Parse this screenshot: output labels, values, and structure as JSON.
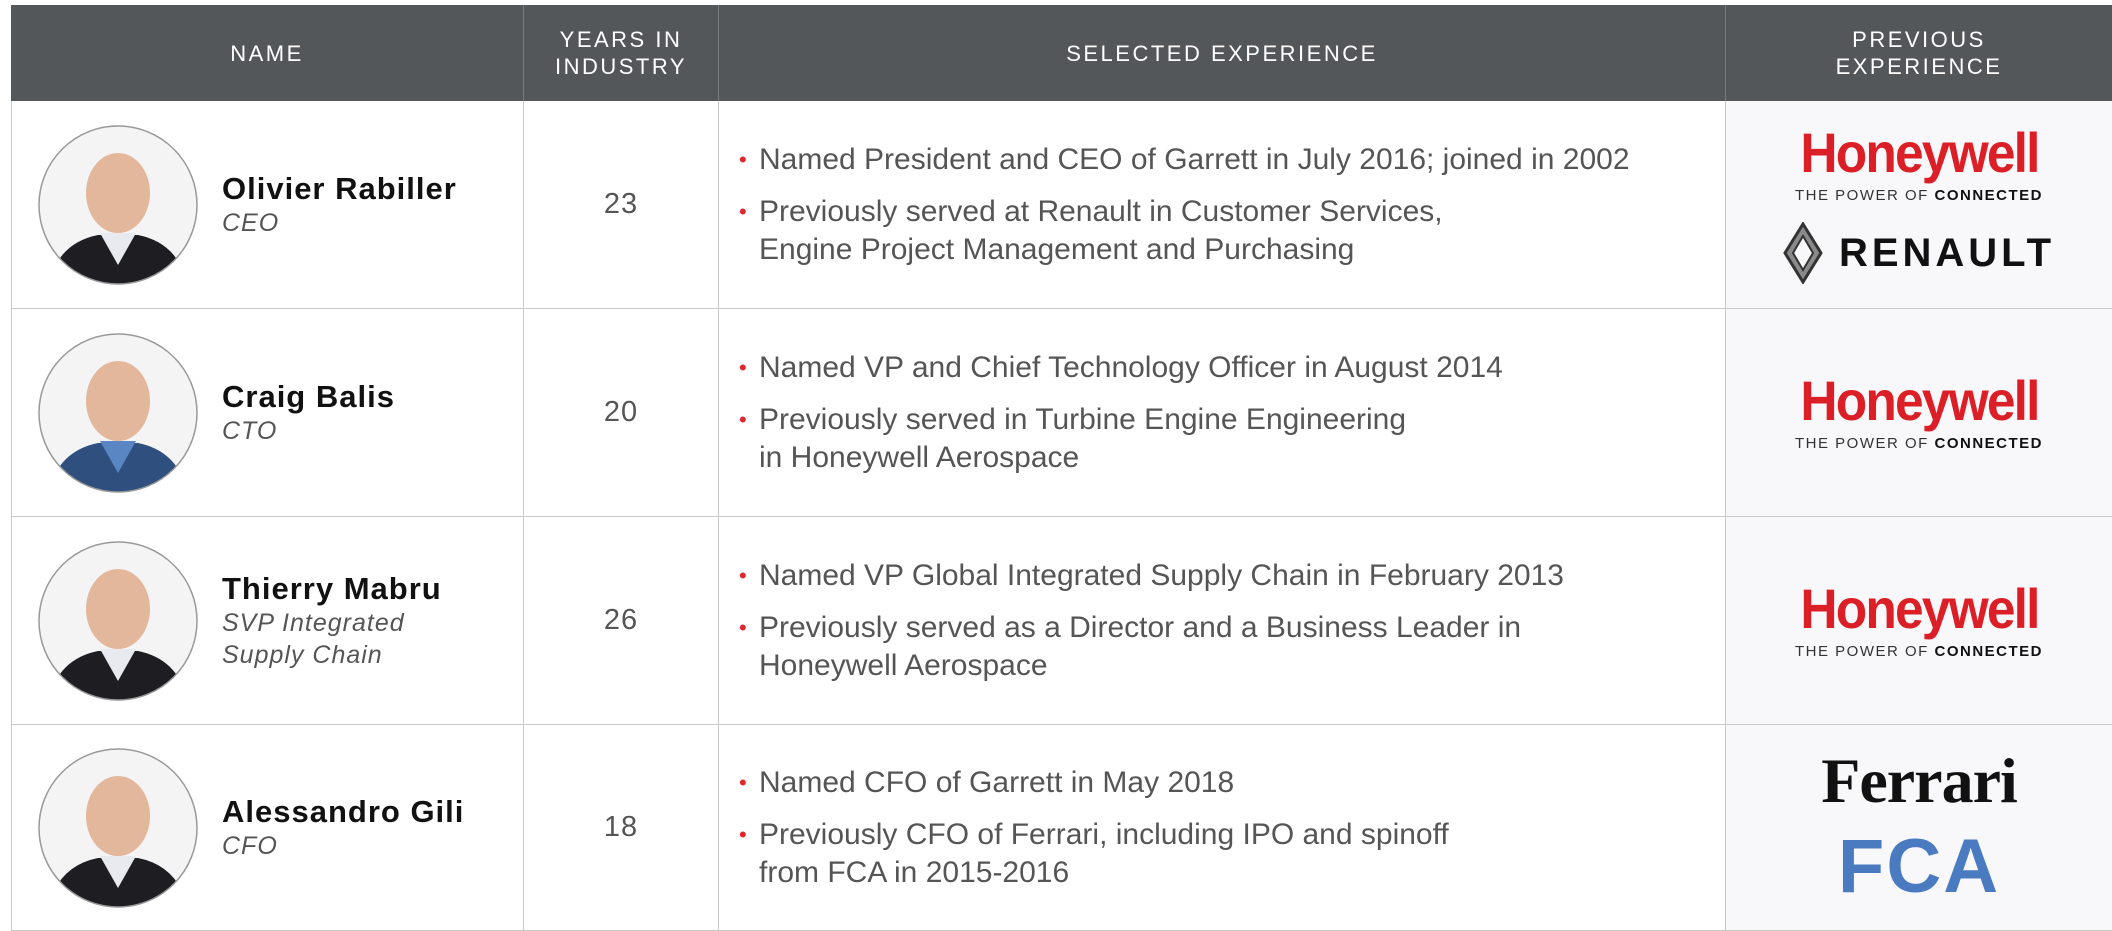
{
  "table": {
    "header": [
      [
        "NAME"
      ],
      [
        "YEARS IN",
        "INDUSTRY"
      ],
      [
        "SELECTED EXPERIENCE"
      ],
      [
        "PREVIOUS",
        "EXPERIENCE"
      ]
    ],
    "rows": [
      {
        "name": "Olivier Rabiller",
        "title": [
          "CEO"
        ],
        "years": 23,
        "experience": [
          [
            "Named President and CEO of Garrett in July 2016; joined in 2002"
          ],
          [
            "Previously served at Renault in Customer Services,",
            "Engine Project Management and Purchasing"
          ]
        ],
        "logos": [
          {
            "brand": "Honeywell",
            "tagline": [
              "THE POWER OF",
              "CONNECTED"
            ]
          },
          {
            "brand": "RENAULT"
          }
        ]
      },
      {
        "name": "Craig Balis",
        "title": [
          "CTO"
        ],
        "years": 20,
        "experience": [
          [
            "Named VP and Chief Technology Officer in August 2014"
          ],
          [
            "Previously served in Turbine Engine Engineering",
            "in Honeywell Aerospace"
          ]
        ],
        "logos": [
          {
            "brand": "Honeywell",
            "tagline": [
              "THE POWER OF",
              "CONNECTED"
            ]
          }
        ]
      },
      {
        "name": "Thierry Mabru",
        "title": [
          "SVP Integrated",
          "Supply Chain"
        ],
        "years": 26,
        "experience": [
          [
            "Named VP Global Integrated Supply Chain in February 2013"
          ],
          [
            "Previously served as a Director and a Business Leader in",
            "Honeywell Aerospace"
          ]
        ],
        "logos": [
          {
            "brand": "Honeywell",
            "tagline": [
              "THE POWER OF",
              "CONNECTED"
            ]
          }
        ]
      },
      {
        "name": "Alessandro Gili",
        "title": [
          "CFO"
        ],
        "years": 18,
        "experience": [
          [
            "Named CFO of Garrett in May 2018"
          ],
          [
            "Previously CFO of Ferrari, including IPO and spinoff",
            "from FCA in 2015-2016"
          ]
        ],
        "logos": [
          {
            "brand": "Ferrari"
          },
          {
            "brand": "FCA"
          }
        ]
      }
    ]
  }
}
